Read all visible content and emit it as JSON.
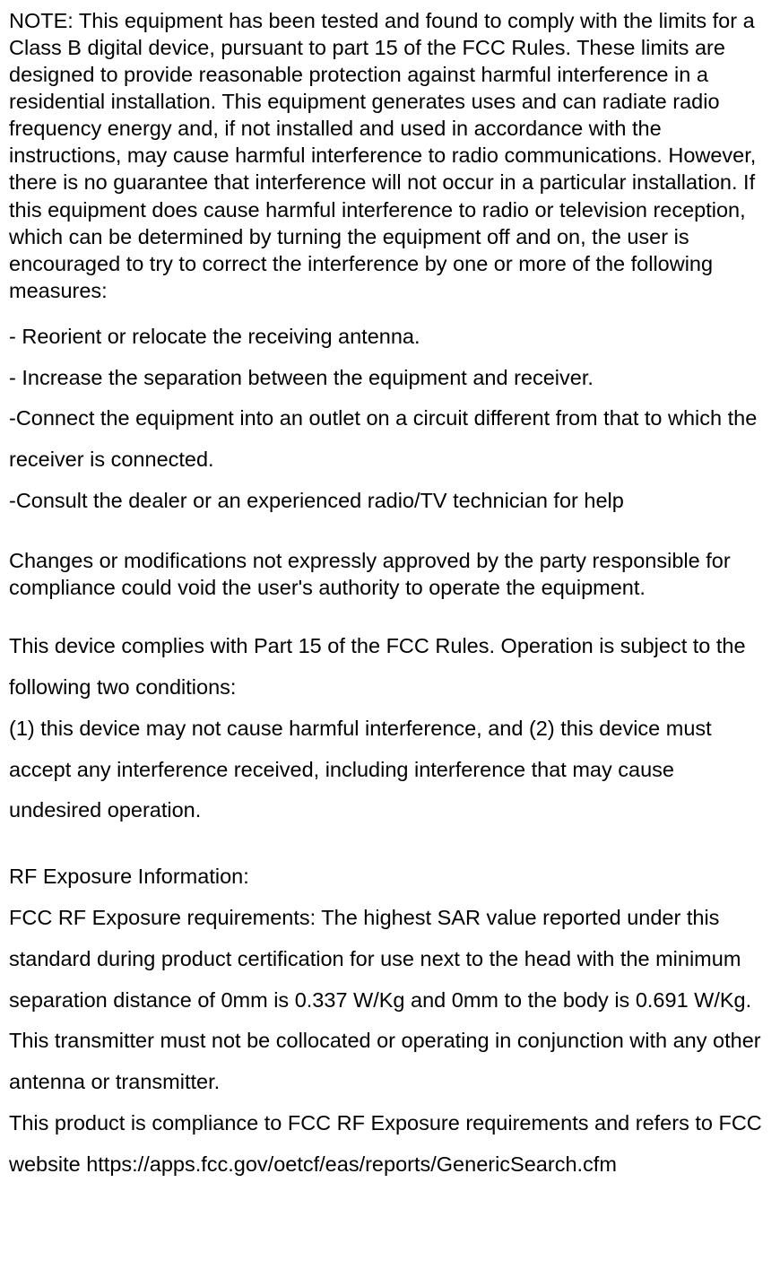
{
  "doc": {
    "note_paragraph": "NOTE: This equipment has been tested and found to comply with the limits for a Class B digital device, pursuant to part 15 of the FCC Rules. These limits are designed to provide reasonable protection against harmful interference in a residential installation. This equipment generates uses and can radiate radio frequency energy and, if not installed and used in accordance with the instructions, may cause harmful interference to radio communications. However, there is no guarantee that interference will not occur in a particular installation. If this equipment does cause harmful interference to radio or television reception, which can be determined by turning the equipment off and on, the user is encouraged to try to correct the interference by one or more of the following measures:",
    "bullet1": "- Reorient or relocate the receiving antenna.",
    "bullet2": "- Increase the separation between the equipment and receiver.",
    "bullet3": "-Connect the equipment into an outlet on a circuit different from that to which the receiver is connected.",
    "bullet4": "-Consult the dealer or an experienced radio/TV technician for help",
    "changes_paragraph": "Changes or modifications not expressly approved by the party responsible for compliance could void the user's authority to operate the equipment.",
    "part15_intro": "This device complies with Part 15 of the FCC Rules. Operation is subject to the following two conditions:",
    "part15_conditions": "(1) this device may not cause harmful interference, and (2) this device must accept any interference received, including interference that may cause undesired operation.",
    "rf_heading": "RF Exposure Information:",
    "rf_body1": "FCC RF Exposure requirements: The highest SAR value reported under this standard during product certification for use next to the head with the minimum separation distance of 0mm is 0.337 W/Kg and 0mm to the body is 0.691 W/Kg. This transmitter must not be collocated or operating in conjunction with any other antenna or transmitter.",
    "rf_body2": "This product is compliance to FCC RF Exposure requirements and refers to FCC website https://apps.fcc.gov/oetcf/eas/reports/GenericSearch.cfm"
  },
  "style": {
    "font_family": "Arial",
    "font_size_pt": 17,
    "text_color": "#000000",
    "background_color": "#ffffff",
    "tight_line_height": 1.28,
    "loose_line_height": 1.95
  }
}
